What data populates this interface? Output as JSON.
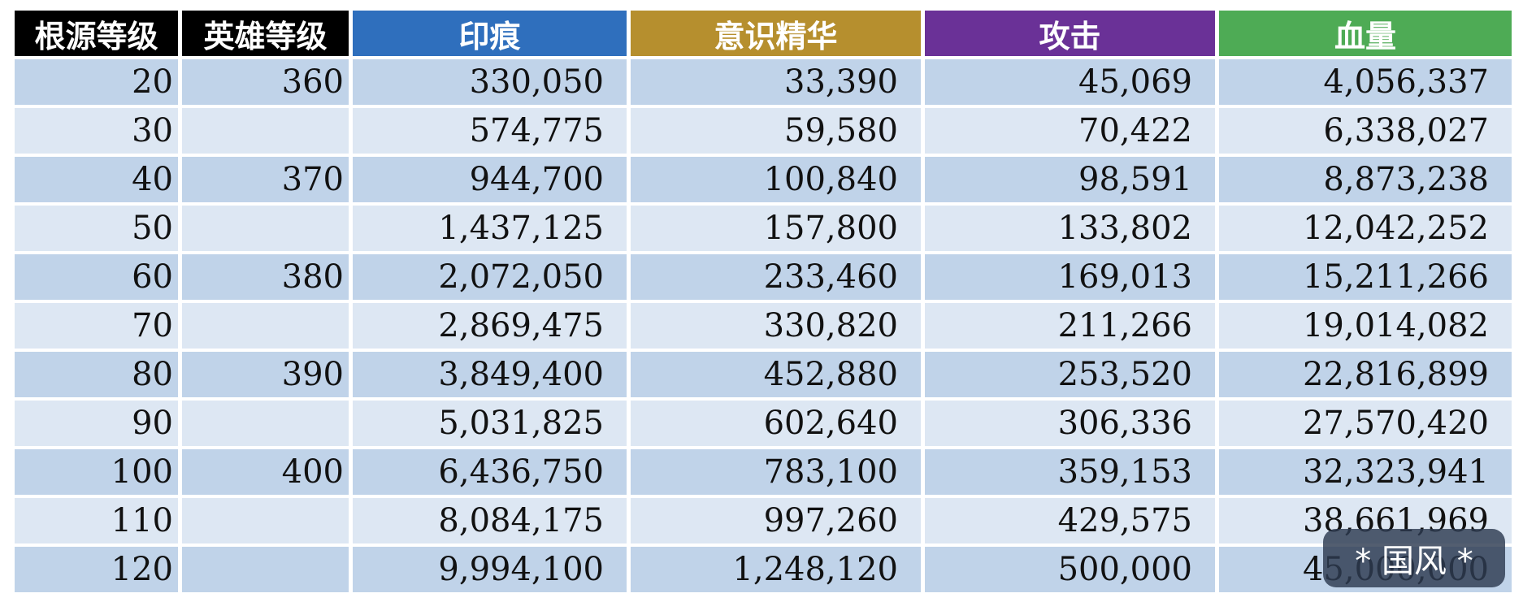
{
  "columns": [
    {
      "label": "根源等级",
      "color": "#000000"
    },
    {
      "label": "英雄等级",
      "color": "#000000"
    },
    {
      "label": "印痕",
      "color": "#2f6fbd"
    },
    {
      "label": "意识精华",
      "color": "#b68f2e"
    },
    {
      "label": "攻击",
      "color": "#6a3197"
    },
    {
      "label": "血量",
      "color": "#4eab55"
    }
  ],
  "rows": [
    [
      "20",
      "360",
      "330,050",
      "33,390",
      "45,069",
      "4,056,337"
    ],
    [
      "30",
      "",
      "574,775",
      "59,580",
      "70,422",
      "6,338,027"
    ],
    [
      "40",
      "370",
      "944,700",
      "100,840",
      "98,591",
      "8,873,238"
    ],
    [
      "50",
      "",
      "1,437,125",
      "157,800",
      "133,802",
      "12,042,252"
    ],
    [
      "60",
      "380",
      "2,072,050",
      "233,460",
      "169,013",
      "15,211,266"
    ],
    [
      "70",
      "",
      "2,869,475",
      "330,820",
      "211,266",
      "19,014,082"
    ],
    [
      "80",
      "390",
      "3,849,400",
      "452,880",
      "253,520",
      "22,816,899"
    ],
    [
      "90",
      "",
      "5,031,825",
      "602,640",
      "306,336",
      "27,570,420"
    ],
    [
      "100",
      "400",
      "6,436,750",
      "783,100",
      "359,153",
      "32,323,941"
    ],
    [
      "110",
      "",
      "8,084,175",
      "997,260",
      "429,575",
      "38,661,969"
    ],
    [
      "120",
      "",
      "9,994,100",
      "1,248,120",
      "500,000",
      "45,000,000"
    ]
  ],
  "row_colors": [
    "#c0d3e9",
    "#dde7f3"
  ],
  "watermark": "* 国风 *"
}
